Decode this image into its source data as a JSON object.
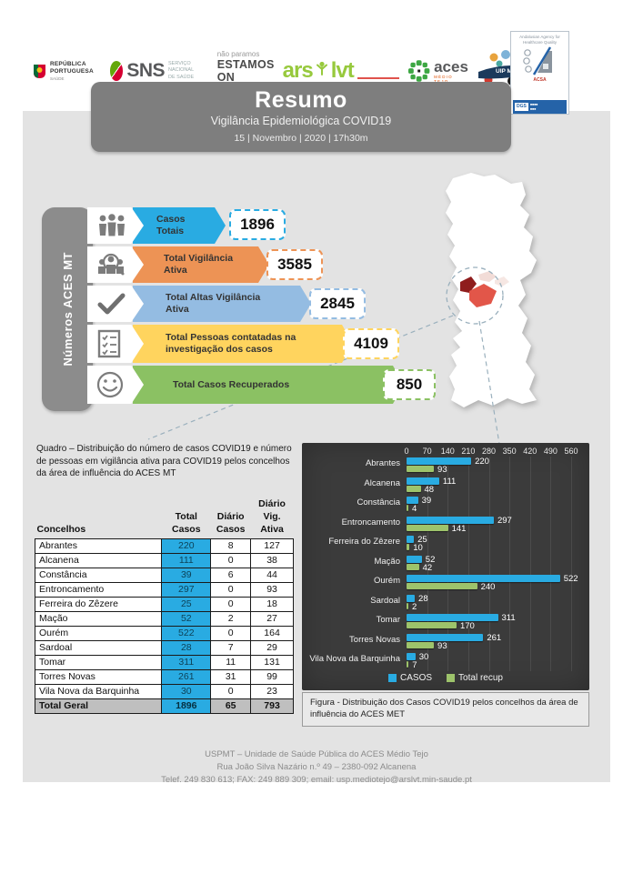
{
  "header": {
    "republica": {
      "line1": "REPÚBLICA",
      "line2": "PORTUGUESA",
      "sub": "SAÚDE"
    },
    "sns": {
      "abbr": "SNS",
      "line1": "SERVIÇO NACIONAL",
      "line2": "DE SAÚDE"
    },
    "estamos": {
      "top": "não paramos",
      "main": "ESTAMOS ON"
    },
    "ars": {
      "word1": "ars",
      "word2": "lvt"
    },
    "aces": {
      "word": "aces",
      "sub": "MÉDIO TEJO"
    },
    "uip": {
      "label": "UIP MT"
    },
    "badge": {
      "top": "Andalusian Agency for Healthcare Quality",
      "acsa": "ACSA",
      "dgs": "DGS"
    }
  },
  "title_box": {
    "title": "Resumo",
    "subtitle": "Vigilância Epidemiológica COVID19",
    "date": "15 | Novembro | 2020 | 17h30m"
  },
  "sidebar_label": "Números ACES MT",
  "stats": [
    {
      "icon": "people-group-icon",
      "label1": "Casos",
      "label2": "Totais",
      "value": "1896",
      "color": "#29abe2"
    },
    {
      "icon": "people-search-icon",
      "label1": "Total Vigilância",
      "label2": "Ativa",
      "value": "3585",
      "color": "#ed9355"
    },
    {
      "icon": "checkmark-icon",
      "label1": "Total Altas Vigilância",
      "label2": "Ativa",
      "value": "2845",
      "color": "#94bce2"
    },
    {
      "icon": "checklist-icon",
      "label1": "Total Pessoas contatadas na",
      "label2": "investigação dos casos",
      "value": "4109",
      "color": "#ffd45e"
    },
    {
      "icon": "smiley-icon",
      "label1": "Total Casos Recuperados",
      "label2": "",
      "value": "850",
      "color": "#8bc163"
    }
  ],
  "table": {
    "caption": "Quadro – Distribuição do número de casos COVID19 e número de pessoas em vigilância ativa para COVID19 pelos concelhos da área de influência do ACES MT",
    "headers": [
      {
        "l1": "",
        "l2": "Concelhos"
      },
      {
        "l1": "Total",
        "l2": "Casos"
      },
      {
        "l1": "Diário",
        "l2": "Casos"
      },
      {
        "l1": "Diário",
        "l2": "Vig. Ativa"
      }
    ],
    "rows": [
      {
        "name": "Abrantes",
        "total": "220",
        "daily": "8",
        "vig": "127"
      },
      {
        "name": "Alcanena",
        "total": "111",
        "daily": "0",
        "vig": "38"
      },
      {
        "name": "Constância",
        "total": "39",
        "daily": "6",
        "vig": "44"
      },
      {
        "name": "Entroncamento",
        "total": "297",
        "daily": "0",
        "vig": "93"
      },
      {
        "name": "Ferreira do Zêzere",
        "total": "25",
        "daily": "0",
        "vig": "18"
      },
      {
        "name": "Mação",
        "total": "52",
        "daily": "2",
        "vig": "27"
      },
      {
        "name": "Ourém",
        "total": "522",
        "daily": "0",
        "vig": "164"
      },
      {
        "name": "Sardoal",
        "total": "28",
        "daily": "7",
        "vig": "29"
      },
      {
        "name": "Tomar",
        "total": "311",
        "daily": "11",
        "vig": "131"
      },
      {
        "name": "Torres Novas",
        "total": "261",
        "daily": "31",
        "vig": "99"
      },
      {
        "name": "Vila Nova da Barquinha",
        "total": "30",
        "daily": "0",
        "vig": "23"
      }
    ],
    "total_row": {
      "name": "Total Geral",
      "total": "1896",
      "daily": "65",
      "vig": "793"
    }
  },
  "chart_data": {
    "type": "bar",
    "orientation": "horizontal",
    "categories": [
      "Abrantes",
      "Alcanena",
      "Constância",
      "Entroncamento",
      "Ferreira do Zêzere",
      "Mação",
      "Ourém",
      "Sardoal",
      "Tomar",
      "Torres Novas",
      "Vila Nova da Barquinha"
    ],
    "series": [
      {
        "name": "CASOS",
        "color": "#29abe2",
        "values": [
          220,
          111,
          39,
          297,
          25,
          52,
          522,
          28,
          311,
          261,
          30
        ]
      },
      {
        "name": "Total recup",
        "color": "#9dc36b",
        "values": [
          93,
          48,
          4,
          141,
          10,
          42,
          240,
          2,
          170,
          93,
          7
        ]
      }
    ],
    "x_ticks": [
      0,
      70,
      140,
      210,
      280,
      350,
      420,
      490,
      560
    ],
    "xlim": [
      0,
      560
    ],
    "axis_position": "top",
    "legend_position": "bottom",
    "background": "#3b3b3b",
    "grid": true
  },
  "figure_caption": "Figura -  Distribuição dos Casos COVID19 pelos concelhos da área de influência do ACES MET",
  "footer": {
    "line1": "USPMT – Unidade de Saúde Pública do ACES Médio Tejo",
    "line2": "Rua João Silva Nazário n.º 49 – 2380-092 Alcanena",
    "line3": "Telef. 249 830 613; FAX: 249 889 309; email: usp.mediotejo@arslvt.min-saude.pt"
  }
}
